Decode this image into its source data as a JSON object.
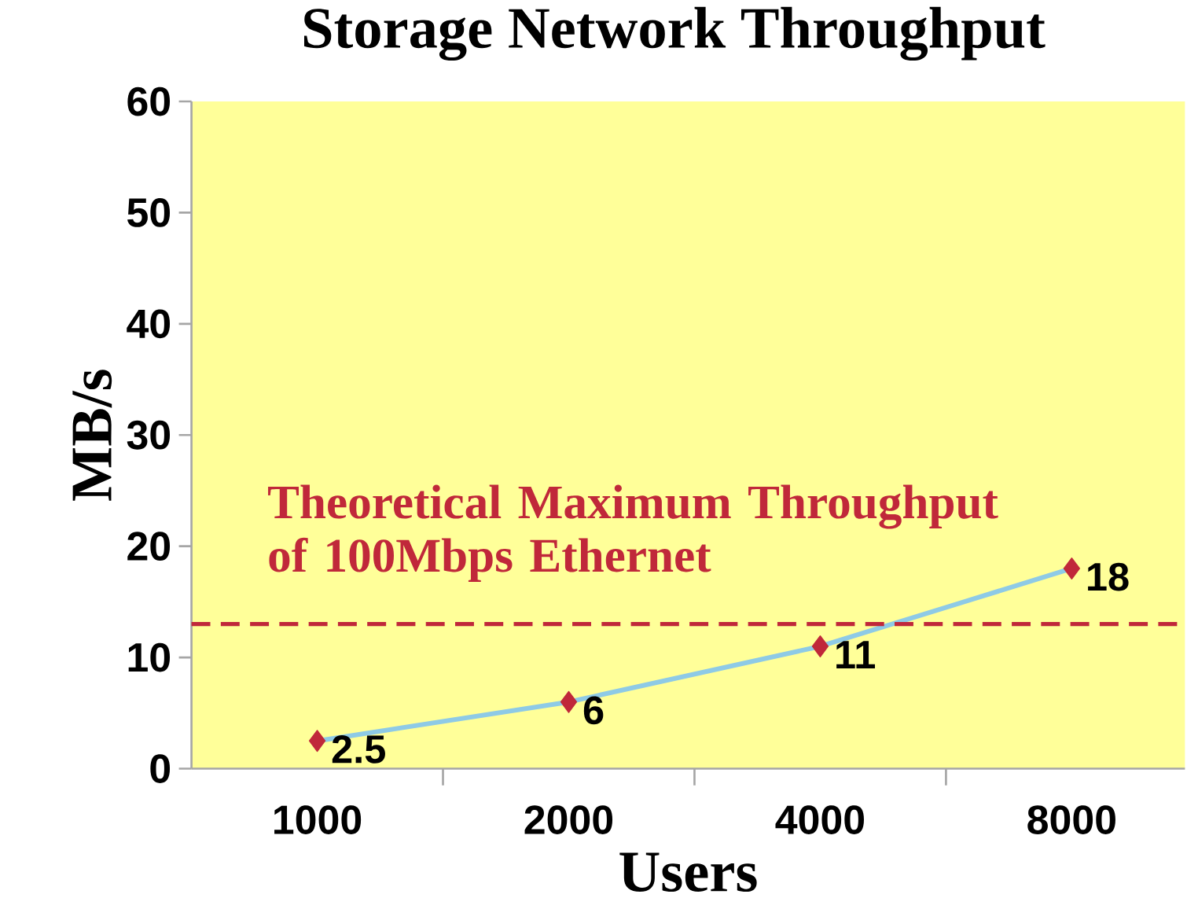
{
  "chart_data": {
    "type": "line",
    "title": "Storage Network Throughput",
    "xlabel": "Users",
    "ylabel": "MB/s",
    "categories": [
      "1000",
      "2000",
      "4000",
      "8000"
    ],
    "series": [
      {
        "color": "#8ecae6",
        "values": [
          2.5,
          6,
          11,
          18
        ]
      }
    ],
    "marker": "diamond",
    "ylim": [
      0,
      60
    ],
    "yticks": [
      0,
      10,
      20,
      30,
      40,
      50,
      60
    ],
    "data_labels": true,
    "ref_lines": [
      {
        "axis": "y",
        "value": 13,
        "label": "Theoretical Maximum Throughput of 100Mbps Ethernet",
        "color": "#c0283a",
        "line_style": "dashed"
      }
    ]
  }
}
